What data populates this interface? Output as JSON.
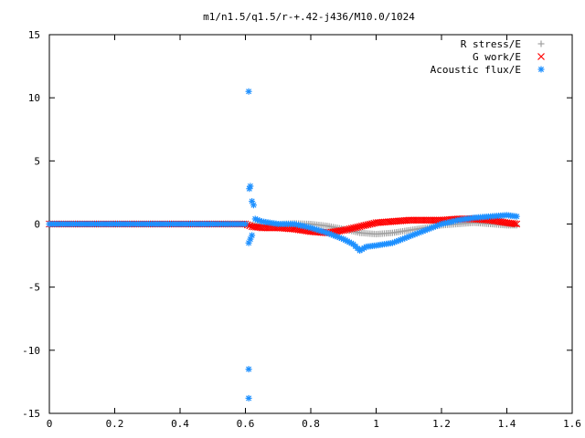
{
  "chart_data": {
    "type": "scatter",
    "title": "m1/n1.5/q1.5/r-+.42-j436/M10.0/1024",
    "xlabel": "",
    "ylabel": "",
    "xlim": [
      0,
      1.6
    ],
    "ylim": [
      -15,
      15
    ],
    "x_ticks": [
      "0",
      "0.2",
      "0.4",
      "0.6",
      "0.8",
      "1",
      "1.2",
      "1.4",
      "1.6"
    ],
    "y_ticks": [
      "15",
      "10",
      "5",
      "0",
      "-5",
      "-10",
      "-15"
    ],
    "grid": false,
    "legend_position": "top-right",
    "series": [
      {
        "name": "R stress/E",
        "marker": "+",
        "color": "#a0a0a0",
        "x": [
          0.0,
          0.1,
          0.2,
          0.3,
          0.4,
          0.5,
          0.6,
          0.62,
          0.65,
          0.7,
          0.75,
          0.8,
          0.85,
          0.9,
          0.95,
          1.0,
          1.05,
          1.1,
          1.15,
          1.2,
          1.25,
          1.3,
          1.35,
          1.4,
          1.43
        ],
        "y": [
          0,
          0,
          0,
          0,
          0,
          0,
          0,
          -0.1,
          -0.1,
          0.0,
          0.05,
          0.0,
          -0.15,
          -0.4,
          -0.7,
          -0.8,
          -0.7,
          -0.5,
          -0.3,
          -0.1,
          0.0,
          0.1,
          0.0,
          -0.1,
          -0.1
        ]
      },
      {
        "name": "G work/E",
        "marker": "x",
        "color": "#ff0000",
        "x": [
          0.0,
          0.1,
          0.2,
          0.3,
          0.4,
          0.5,
          0.6,
          0.62,
          0.65,
          0.7,
          0.75,
          0.8,
          0.85,
          0.9,
          0.95,
          1.0,
          1.05,
          1.1,
          1.15,
          1.2,
          1.25,
          1.3,
          1.35,
          1.4,
          1.43
        ],
        "y": [
          0,
          0,
          0,
          0,
          0,
          0,
          0,
          -0.2,
          -0.3,
          -0.3,
          -0.4,
          -0.6,
          -0.7,
          -0.5,
          -0.2,
          0.1,
          0.2,
          0.3,
          0.3,
          0.3,
          0.4,
          0.4,
          0.3,
          0.1,
          0.0
        ]
      },
      {
        "name": "Acoustic flux/E",
        "marker": "*",
        "color": "#1e90ff",
        "x": [
          0.0,
          0.1,
          0.2,
          0.3,
          0.4,
          0.5,
          0.58,
          0.6,
          0.61,
          0.61,
          0.61,
          0.61,
          0.612,
          0.615,
          0.615,
          0.62,
          0.62,
          0.625,
          0.63,
          0.65,
          0.7,
          0.75,
          0.8,
          0.85,
          0.9,
          0.93,
          0.95,
          0.97,
          1.0,
          1.05,
          1.1,
          1.15,
          1.2,
          1.25,
          1.3,
          1.35,
          1.4,
          1.43
        ],
        "y": [
          0,
          0,
          0,
          0,
          0,
          0,
          0,
          0,
          10.5,
          -11.5,
          -13.8,
          -1.5,
          2.8,
          3.0,
          -1.2,
          1.8,
          -0.9,
          1.5,
          0.4,
          0.2,
          0.0,
          0.0,
          -0.3,
          -0.7,
          -1.2,
          -1.6,
          -2.1,
          -1.8,
          -1.7,
          -1.5,
          -1.0,
          -0.5,
          0.0,
          0.3,
          0.5,
          0.6,
          0.7,
          0.6
        ]
      }
    ]
  }
}
